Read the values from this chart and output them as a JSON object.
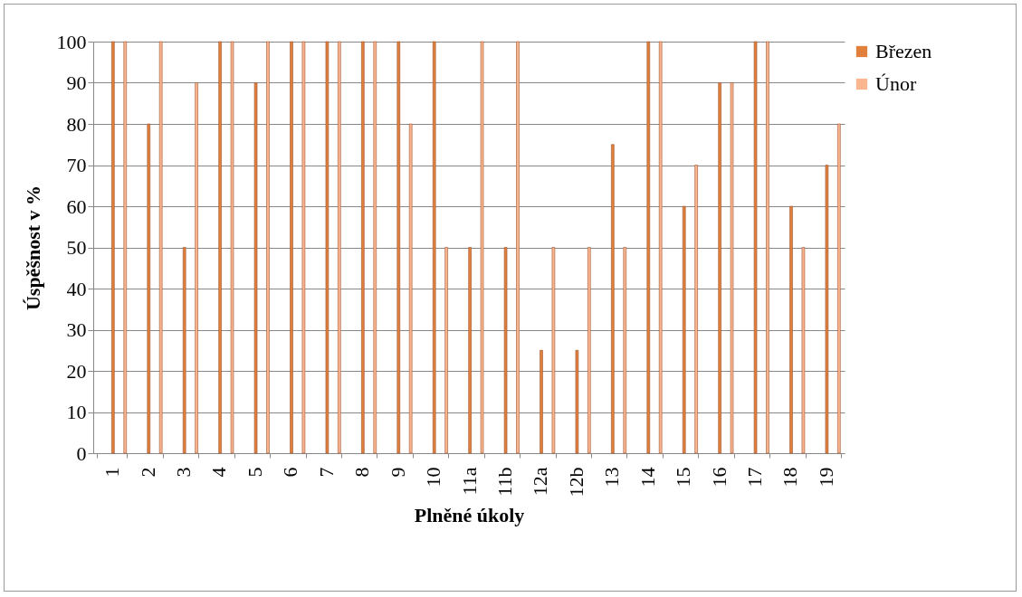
{
  "chart_data": {
    "type": "bar",
    "xlabel": "Plněné úkoly",
    "ylabel": "Úspěšnost v %",
    "categories": [
      "1",
      "2",
      "3",
      "4",
      "5",
      "6",
      "7",
      "8",
      "9",
      "10",
      "11a",
      "11b",
      "12a",
      "12b",
      "13",
      "14",
      "15",
      "16",
      "17",
      "18",
      "19"
    ],
    "series": [
      {
        "name": "Březen",
        "color": "#e0803c",
        "values": [
          100,
          80,
          50,
          100,
          90,
          100,
          100,
          100,
          100,
          100,
          50,
          50,
          25,
          25,
          75,
          100,
          60,
          90,
          100,
          60,
          70
        ]
      },
      {
        "name": "Únor",
        "color": "#fbb690",
        "values": [
          100,
          100,
          90,
          100,
          100,
          100,
          100,
          100,
          80,
          50,
          100,
          100,
          50,
          50,
          50,
          100,
          70,
          90,
          100,
          50,
          80
        ]
      }
    ],
    "ylim": [
      0,
      100
    ],
    "yticks": [
      0,
      10,
      20,
      30,
      40,
      50,
      60,
      70,
      80,
      90,
      100
    ],
    "grid": "y",
    "legend": "right"
  }
}
